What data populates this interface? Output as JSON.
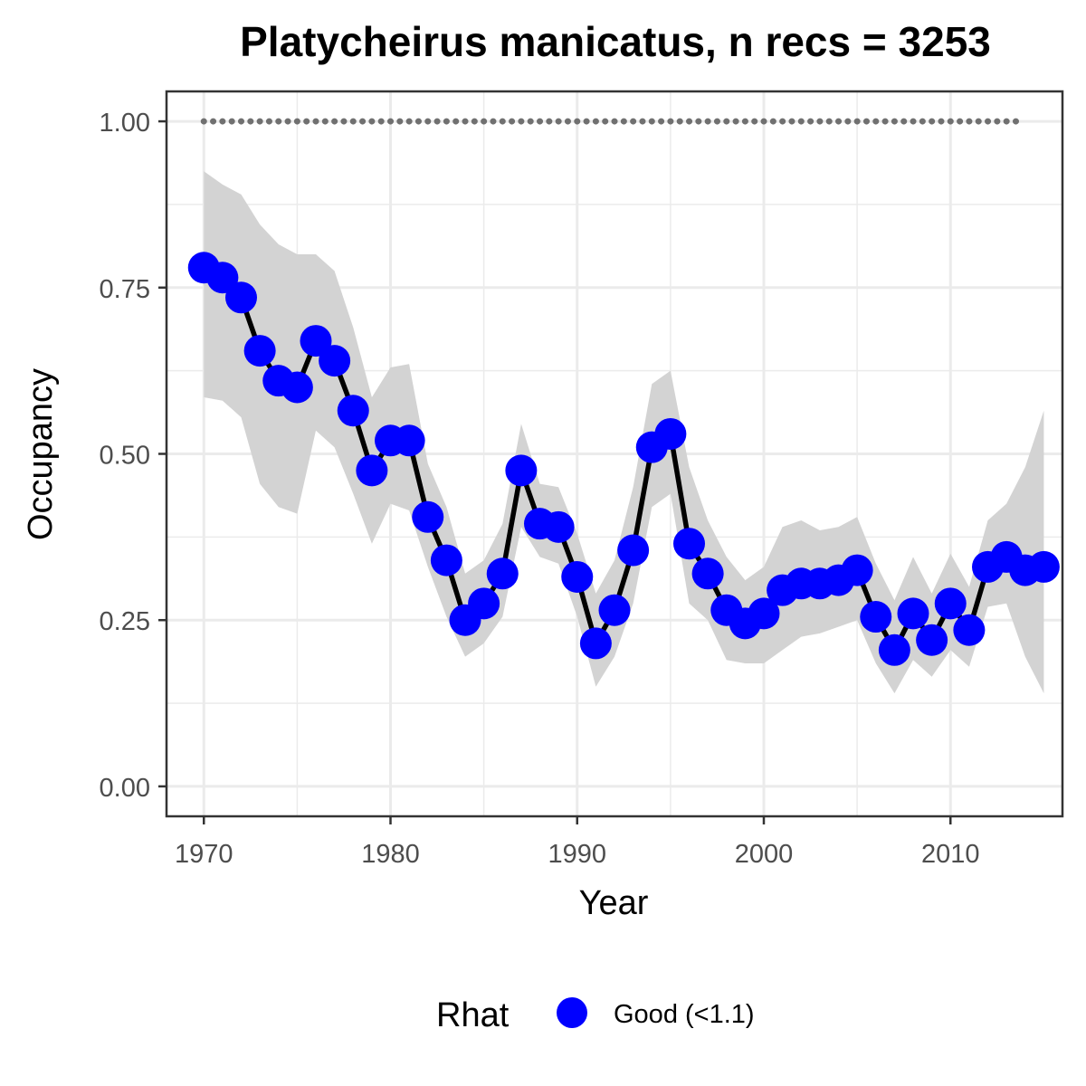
{
  "chart_data": {
    "type": "line",
    "title": "Platycheirus manicatus, n recs = 3253",
    "xlabel": "Year",
    "ylabel": "Occupancy",
    "xlim": [
      1968,
      2016
    ],
    "ylim": [
      -0.045,
      1.045
    ],
    "x_ticks": [
      1970,
      1980,
      1990,
      2000,
      2010
    ],
    "x_tick_labels": [
      "1970",
      "1980",
      "1990",
      "2000",
      "2010"
    ],
    "y_ticks": [
      0,
      0.25,
      0.5,
      0.75,
      1.0
    ],
    "y_tick_labels": [
      "0.00",
      "0.25",
      "0.50",
      "0.75",
      "1.00"
    ],
    "grid": true,
    "legend": {
      "title": "Rhat",
      "position": "bottom",
      "entries": [
        {
          "label": "Good (<1.1)",
          "color": "#0000ff"
        }
      ]
    },
    "colors": {
      "points": "#0000ff",
      "line": "#000000",
      "ribbon": "#d3d3d3",
      "dotted_reference": "#707070"
    },
    "reference_line": {
      "y": 1.0,
      "x_start": 1970,
      "x_end": 2014,
      "style": "dotted"
    },
    "series": [
      {
        "name": "Good (<1.1)",
        "x": [
          1970,
          1971,
          1972,
          1973,
          1974,
          1975,
          1976,
          1977,
          1978,
          1979,
          1980,
          1981,
          1982,
          1983,
          1984,
          1985,
          1986,
          1987,
          1988,
          1989,
          1990,
          1991,
          1992,
          1993,
          1994,
          1995,
          1996,
          1997,
          1998,
          1999,
          2000,
          2001,
          2002,
          2003,
          2004,
          2005,
          2006,
          2007,
          2008,
          2009,
          2010,
          2011,
          2012,
          2013,
          2014,
          2015
        ],
        "y": [
          0.78,
          0.765,
          0.735,
          0.655,
          0.61,
          0.6,
          0.67,
          0.64,
          0.565,
          0.475,
          0.52,
          0.52,
          0.405,
          0.34,
          0.25,
          0.275,
          0.32,
          0.475,
          0.395,
          0.39,
          0.315,
          0.215,
          0.265,
          0.355,
          0.51,
          0.53,
          0.365,
          0.32,
          0.265,
          0.245,
          0.26,
          0.295,
          0.305,
          0.305,
          0.31,
          0.325,
          0.255,
          0.205,
          0.26,
          0.22,
          0.275,
          0.235,
          0.33,
          0.345,
          0.325,
          0.33
        ],
        "lower": [
          0.585,
          0.58,
          0.555,
          0.455,
          0.42,
          0.41,
          0.535,
          0.51,
          0.44,
          0.365,
          0.425,
          0.415,
          0.33,
          0.255,
          0.195,
          0.215,
          0.255,
          0.39,
          0.345,
          0.335,
          0.255,
          0.15,
          0.195,
          0.275,
          0.42,
          0.44,
          0.275,
          0.25,
          0.19,
          0.185,
          0.185,
          0.205,
          0.225,
          0.23,
          0.24,
          0.25,
          0.185,
          0.14,
          0.19,
          0.165,
          0.205,
          0.18,
          0.27,
          0.275,
          0.195,
          0.14
        ],
        "upper": [
          0.925,
          0.905,
          0.89,
          0.845,
          0.815,
          0.8,
          0.8,
          0.775,
          0.69,
          0.585,
          0.63,
          0.635,
          0.485,
          0.42,
          0.32,
          0.34,
          0.395,
          0.545,
          0.455,
          0.45,
          0.38,
          0.29,
          0.34,
          0.45,
          0.605,
          0.625,
          0.48,
          0.4,
          0.345,
          0.31,
          0.33,
          0.39,
          0.4,
          0.385,
          0.39,
          0.405,
          0.335,
          0.28,
          0.345,
          0.29,
          0.35,
          0.3,
          0.4,
          0.425,
          0.48,
          0.565
        ]
      }
    ]
  }
}
